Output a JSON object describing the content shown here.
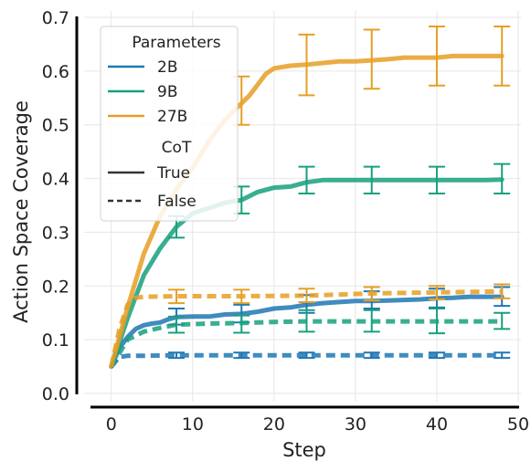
{
  "chart_data": {
    "type": "line",
    "title": "",
    "xlabel": "Step",
    "ylabel": "Action Space Coverage",
    "xlim": [
      -2,
      50
    ],
    "ylim": [
      0,
      0.7
    ],
    "xticks": [
      0,
      10,
      20,
      30,
      40,
      50
    ],
    "yticks": [
      0.0,
      0.1,
      0.2,
      0.3,
      0.4,
      0.5,
      0.6,
      0.7
    ],
    "grid": true,
    "legend": {
      "placement": "top-left",
      "groups": [
        {
          "title": "Parameters",
          "entries": [
            {
              "label": "2B",
              "color": "#1f77b4",
              "style": "solid"
            },
            {
              "label": "9B",
              "color": "#17a07e",
              "style": "solid"
            },
            {
              "label": "27B",
              "color": "#e69f24",
              "style": "solid"
            }
          ]
        },
        {
          "title": "CoT",
          "entries": [
            {
              "label": "True",
              "color": "#333333",
              "style": "solid"
            },
            {
              "label": "False",
              "color": "#333333",
              "style": "dashed"
            }
          ]
        }
      ]
    },
    "series": [
      {
        "parameters": "2B",
        "cot": "True",
        "color": "#1f77b4",
        "dashed": false,
        "x": [
          0,
          1,
          2,
          3,
          4,
          5,
          6,
          7,
          8,
          10,
          12,
          14,
          16,
          18,
          20,
          22,
          24,
          26,
          28,
          30,
          32,
          34,
          36,
          38,
          40,
          42,
          44,
          46,
          48
        ],
        "y": [
          0.05,
          0.085,
          0.105,
          0.12,
          0.127,
          0.13,
          0.132,
          0.138,
          0.142,
          0.143,
          0.143,
          0.147,
          0.148,
          0.152,
          0.158,
          0.16,
          0.165,
          0.168,
          0.17,
          0.172,
          0.172,
          0.173,
          0.174,
          0.175,
          0.177,
          0.178,
          0.18,
          0.18,
          0.18
        ],
        "error_bars": [
          {
            "x": 8,
            "low": 0.128,
            "high": 0.158
          },
          {
            "x": 16,
            "low": 0.132,
            "high": 0.165
          },
          {
            "x": 24,
            "low": 0.15,
            "high": 0.183
          },
          {
            "x": 32,
            "low": 0.158,
            "high": 0.19
          },
          {
            "x": 40,
            "low": 0.16,
            "high": 0.195
          },
          {
            "x": 48,
            "low": 0.163,
            "high": 0.198
          }
        ]
      },
      {
        "parameters": "9B",
        "cot": "True",
        "color": "#17a07e",
        "dashed": false,
        "x": [
          0,
          2,
          4,
          6,
          8,
          10,
          12,
          14,
          16,
          18,
          20,
          22,
          24,
          26,
          28,
          30,
          32,
          34,
          36,
          38,
          40,
          42,
          44,
          46,
          48
        ],
        "y": [
          0.05,
          0.14,
          0.22,
          0.27,
          0.31,
          0.335,
          0.345,
          0.355,
          0.36,
          0.375,
          0.383,
          0.385,
          0.393,
          0.397,
          0.397,
          0.397,
          0.397,
          0.397,
          0.397,
          0.397,
          0.397,
          0.397,
          0.397,
          0.397,
          0.398
        ],
        "error_bars": [
          {
            "x": 8,
            "low": 0.29,
            "high": 0.33
          },
          {
            "x": 16,
            "low": 0.335,
            "high": 0.385
          },
          {
            "x": 24,
            "low": 0.372,
            "high": 0.422
          },
          {
            "x": 32,
            "low": 0.372,
            "high": 0.422
          },
          {
            "x": 40,
            "low": 0.372,
            "high": 0.422
          },
          {
            "x": 48,
            "low": 0.372,
            "high": 0.427
          }
        ]
      },
      {
        "parameters": "27B",
        "cot": "True",
        "color": "#e69f24",
        "dashed": false,
        "x": [
          0,
          2,
          4,
          6,
          8,
          10,
          12,
          14,
          16,
          17,
          18,
          19,
          20,
          22,
          24,
          26,
          28,
          30,
          32,
          34,
          36,
          38,
          40,
          42,
          44,
          46,
          48
        ],
        "y": [
          0.05,
          0.16,
          0.26,
          0.33,
          0.38,
          0.42,
          0.47,
          0.51,
          0.54,
          0.555,
          0.575,
          0.595,
          0.605,
          0.61,
          0.612,
          0.615,
          0.618,
          0.618,
          0.62,
          0.622,
          0.625,
          0.625,
          0.625,
          0.628,
          0.628,
          0.628,
          0.628
        ],
        "error_bars": [
          {
            "x": 16,
            "low": 0.5,
            "high": 0.59
          },
          {
            "x": 24,
            "low": 0.555,
            "high": 0.668
          },
          {
            "x": 32,
            "low": 0.567,
            "high": 0.677
          },
          {
            "x": 40,
            "low": 0.573,
            "high": 0.683
          },
          {
            "x": 48,
            "low": 0.573,
            "high": 0.683
          }
        ]
      },
      {
        "parameters": "2B",
        "cot": "False",
        "color": "#1f77b4",
        "dashed": true,
        "x": [
          0,
          1,
          2,
          4,
          8,
          16,
          24,
          32,
          40,
          48
        ],
        "y": [
          0.05,
          0.068,
          0.07,
          0.07,
          0.071,
          0.071,
          0.071,
          0.071,
          0.071,
          0.071
        ],
        "error_bars": [
          {
            "x": 8,
            "low": 0.066,
            "high": 0.076
          },
          {
            "x": 16,
            "low": 0.066,
            "high": 0.076
          },
          {
            "x": 24,
            "low": 0.066,
            "high": 0.076
          },
          {
            "x": 32,
            "low": 0.066,
            "high": 0.076
          },
          {
            "x": 40,
            "low": 0.066,
            "high": 0.076
          },
          {
            "x": 48,
            "low": 0.066,
            "high": 0.076
          }
        ]
      },
      {
        "parameters": "9B",
        "cot": "False",
        "color": "#17a07e",
        "dashed": true,
        "x": [
          0,
          2,
          4,
          6,
          8,
          12,
          16,
          20,
          24,
          28,
          32,
          36,
          40,
          44,
          48
        ],
        "y": [
          0.05,
          0.1,
          0.115,
          0.122,
          0.128,
          0.13,
          0.131,
          0.133,
          0.134,
          0.134,
          0.134,
          0.134,
          0.134,
          0.134,
          0.134
        ],
        "error_bars": [
          {
            "x": 8,
            "low": 0.113,
            "high": 0.143
          },
          {
            "x": 16,
            "low": 0.113,
            "high": 0.145
          },
          {
            "x": 24,
            "low": 0.115,
            "high": 0.155
          },
          {
            "x": 32,
            "low": 0.115,
            "high": 0.155
          },
          {
            "x": 40,
            "low": 0.112,
            "high": 0.158
          },
          {
            "x": 48,
            "low": 0.12,
            "high": 0.15
          }
        ]
      },
      {
        "parameters": "27B",
        "cot": "False",
        "color": "#e69f24",
        "dashed": true,
        "x": [
          0,
          1,
          2,
          3,
          4,
          8,
          16,
          24,
          32,
          40,
          48
        ],
        "y": [
          0.05,
          0.12,
          0.165,
          0.178,
          0.18,
          0.181,
          0.181,
          0.182,
          0.186,
          0.188,
          0.19
        ],
        "error_bars": [
          {
            "x": 8,
            "low": 0.168,
            "high": 0.193
          },
          {
            "x": 16,
            "low": 0.168,
            "high": 0.193
          },
          {
            "x": 24,
            "low": 0.17,
            "high": 0.195
          },
          {
            "x": 32,
            "low": 0.173,
            "high": 0.198
          },
          {
            "x": 40,
            "low": 0.175,
            "high": 0.2
          },
          {
            "x": 48,
            "low": 0.177,
            "high": 0.203
          }
        ]
      }
    ]
  }
}
